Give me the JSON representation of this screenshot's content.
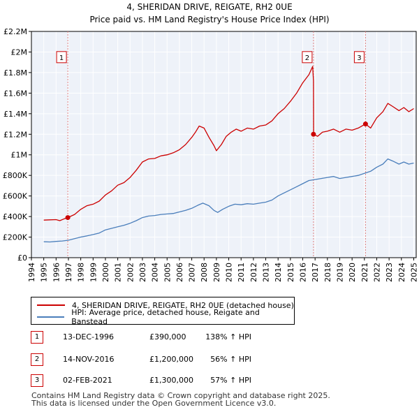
{
  "title": "4, SHERIDAN DRIVE, REIGATE, RH2 0UE",
  "subtitle": "Price paid vs. HM Land Registry's House Price Index (HPI)",
  "chart_data": {
    "type": "line",
    "title": "4, SHERIDAN DRIVE, REIGATE, RH2 0UE",
    "subtitle": "Price paid vs. HM Land Registry's House Price Index (HPI)",
    "xlim": [
      1994,
      2025.2
    ],
    "ylim": [
      0,
      2200000
    ],
    "x_ticks": [
      1994,
      1995,
      1996,
      1997,
      1998,
      1999,
      2000,
      2001,
      2002,
      2003,
      2004,
      2005,
      2006,
      2007,
      2008,
      2009,
      2010,
      2011,
      2012,
      2013,
      2014,
      2015,
      2016,
      2017,
      2018,
      2019,
      2020,
      2021,
      2022,
      2023,
      2024,
      2025
    ],
    "y_ticks": [
      {
        "value": 0,
        "label": "£0"
      },
      {
        "value": 200000,
        "label": "£200K"
      },
      {
        "value": 400000,
        "label": "£400K"
      },
      {
        "value": 600000,
        "label": "£600K"
      },
      {
        "value": 800000,
        "label": "£800K"
      },
      {
        "value": 1000000,
        "label": "£1M"
      },
      {
        "value": 1200000,
        "label": "£1.2M"
      },
      {
        "value": 1400000,
        "label": "£1.4M"
      },
      {
        "value": 1600000,
        "label": "£1.6M"
      },
      {
        "value": 1800000,
        "label": "£1.8M"
      },
      {
        "value": 2000000,
        "label": "£2M"
      },
      {
        "value": 2200000,
        "label": "£2.2M"
      }
    ],
    "grid": true,
    "series": [
      {
        "name": "4, SHERIDAN DRIVE, REIGATE, RH2 0UE (detached house)",
        "color": "#cc0000",
        "points": [
          [
            1995.0,
            365000
          ],
          [
            1995.5,
            368000
          ],
          [
            1996.0,
            370000
          ],
          [
            1996.3,
            360000
          ],
          [
            1996.6,
            375000
          ],
          [
            1996.95,
            390000
          ],
          [
            1997.5,
            420000
          ],
          [
            1998.0,
            470000
          ],
          [
            1998.5,
            505000
          ],
          [
            1999.0,
            520000
          ],
          [
            1999.5,
            550000
          ],
          [
            2000.0,
            610000
          ],
          [
            2000.5,
            650000
          ],
          [
            2001.0,
            705000
          ],
          [
            2001.5,
            730000
          ],
          [
            2002.0,
            780000
          ],
          [
            2002.5,
            850000
          ],
          [
            2003.0,
            930000
          ],
          [
            2003.5,
            960000
          ],
          [
            2004.0,
            965000
          ],
          [
            2004.5,
            990000
          ],
          [
            2005.0,
            1000000
          ],
          [
            2005.5,
            1020000
          ],
          [
            2006.0,
            1050000
          ],
          [
            2006.5,
            1100000
          ],
          [
            2007.0,
            1170000
          ],
          [
            2007.3,
            1220000
          ],
          [
            2007.6,
            1280000
          ],
          [
            2008.0,
            1260000
          ],
          [
            2008.4,
            1170000
          ],
          [
            2008.8,
            1090000
          ],
          [
            2009.0,
            1040000
          ],
          [
            2009.4,
            1100000
          ],
          [
            2009.8,
            1180000
          ],
          [
            2010.2,
            1220000
          ],
          [
            2010.6,
            1250000
          ],
          [
            2011.0,
            1230000
          ],
          [
            2011.5,
            1260000
          ],
          [
            2012.0,
            1250000
          ],
          [
            2012.5,
            1280000
          ],
          [
            2013.0,
            1290000
          ],
          [
            2013.5,
            1330000
          ],
          [
            2014.0,
            1400000
          ],
          [
            2014.5,
            1450000
          ],
          [
            2015.0,
            1520000
          ],
          [
            2015.5,
            1600000
          ],
          [
            2016.0,
            1700000
          ],
          [
            2016.5,
            1780000
          ],
          [
            2016.8,
            1860000
          ],
          [
            2016.87,
            1720000
          ],
          [
            2016.88,
            1200000
          ],
          [
            2017.2,
            1180000
          ],
          [
            2017.6,
            1220000
          ],
          [
            2018.0,
            1230000
          ],
          [
            2018.5,
            1250000
          ],
          [
            2019.0,
            1220000
          ],
          [
            2019.5,
            1250000
          ],
          [
            2020.0,
            1240000
          ],
          [
            2020.5,
            1260000
          ],
          [
            2021.09,
            1300000
          ],
          [
            2021.5,
            1260000
          ],
          [
            2022.0,
            1360000
          ],
          [
            2022.5,
            1420000
          ],
          [
            2022.9,
            1500000
          ],
          [
            2023.3,
            1470000
          ],
          [
            2023.8,
            1430000
          ],
          [
            2024.2,
            1460000
          ],
          [
            2024.6,
            1420000
          ],
          [
            2025.0,
            1450000
          ]
        ]
      },
      {
        "name": "HPI: Average price, detached house, Reigate and Banstead",
        "color": "#4a7ebb",
        "points": [
          [
            1995.0,
            155000
          ],
          [
            1995.5,
            153000
          ],
          [
            1996.0,
            158000
          ],
          [
            1996.5,
            162000
          ],
          [
            1997.0,
            170000
          ],
          [
            1997.5,
            185000
          ],
          [
            1998.0,
            200000
          ],
          [
            1998.5,
            212000
          ],
          [
            1999.0,
            225000
          ],
          [
            1999.5,
            240000
          ],
          [
            2000.0,
            270000
          ],
          [
            2000.5,
            285000
          ],
          [
            2001.0,
            300000
          ],
          [
            2001.5,
            315000
          ],
          [
            2002.0,
            335000
          ],
          [
            2002.5,
            360000
          ],
          [
            2003.0,
            390000
          ],
          [
            2003.5,
            405000
          ],
          [
            2004.0,
            410000
          ],
          [
            2004.5,
            420000
          ],
          [
            2005.0,
            425000
          ],
          [
            2005.5,
            430000
          ],
          [
            2006.0,
            445000
          ],
          [
            2006.5,
            460000
          ],
          [
            2007.0,
            480000
          ],
          [
            2007.5,
            510000
          ],
          [
            2007.9,
            530000
          ],
          [
            2008.4,
            505000
          ],
          [
            2008.8,
            460000
          ],
          [
            2009.1,
            440000
          ],
          [
            2009.5,
            470000
          ],
          [
            2010.0,
            500000
          ],
          [
            2010.5,
            520000
          ],
          [
            2011.0,
            515000
          ],
          [
            2011.5,
            525000
          ],
          [
            2012.0,
            520000
          ],
          [
            2012.5,
            530000
          ],
          [
            2013.0,
            540000
          ],
          [
            2013.5,
            560000
          ],
          [
            2014.0,
            600000
          ],
          [
            2014.5,
            630000
          ],
          [
            2015.0,
            660000
          ],
          [
            2015.5,
            690000
          ],
          [
            2016.0,
            720000
          ],
          [
            2016.5,
            750000
          ],
          [
            2017.0,
            760000
          ],
          [
            2017.5,
            770000
          ],
          [
            2018.0,
            780000
          ],
          [
            2018.5,
            790000
          ],
          [
            2019.0,
            770000
          ],
          [
            2019.5,
            780000
          ],
          [
            2020.0,
            790000
          ],
          [
            2020.5,
            800000
          ],
          [
            2021.0,
            820000
          ],
          [
            2021.5,
            840000
          ],
          [
            2022.0,
            880000
          ],
          [
            2022.5,
            910000
          ],
          [
            2022.9,
            960000
          ],
          [
            2023.3,
            940000
          ],
          [
            2023.8,
            910000
          ],
          [
            2024.2,
            930000
          ],
          [
            2024.6,
            910000
          ],
          [
            2025.0,
            920000
          ]
        ]
      }
    ],
    "sales": [
      {
        "marker": "1",
        "x": 1996.95,
        "price": 390000
      },
      {
        "marker": "2",
        "x": 2016.87,
        "price": 1200000
      },
      {
        "marker": "3",
        "x": 2021.09,
        "price": 1300000
      }
    ],
    "legend": [
      {
        "label": "4, SHERIDAN DRIVE, REIGATE, RH2 0UE (detached house)",
        "color": "#cc0000"
      },
      {
        "label": "HPI: Average price, detached house, Reigate and Banstead",
        "color": "#4a7ebb"
      }
    ]
  },
  "transactions": [
    {
      "marker": "1",
      "date": "13-DEC-1996",
      "price": "£390,000",
      "hpi": "138% ↑ HPI"
    },
    {
      "marker": "2",
      "date": "14-NOV-2016",
      "price": "£1,200,000",
      "hpi": "56% ↑ HPI"
    },
    {
      "marker": "3",
      "date": "02-FEB-2021",
      "price": "£1,300,000",
      "hpi": "57% ↑ HPI"
    }
  ],
  "footer": {
    "line1": "Contains HM Land Registry data © Crown copyright and database right 2025.",
    "line2": "This data is licensed under the Open Government Licence v3.0."
  },
  "colors": {
    "price": "#cc0000",
    "hpi": "#4a7ebb",
    "plot_bg": "#eef2f9",
    "grid": "#ffffff"
  }
}
